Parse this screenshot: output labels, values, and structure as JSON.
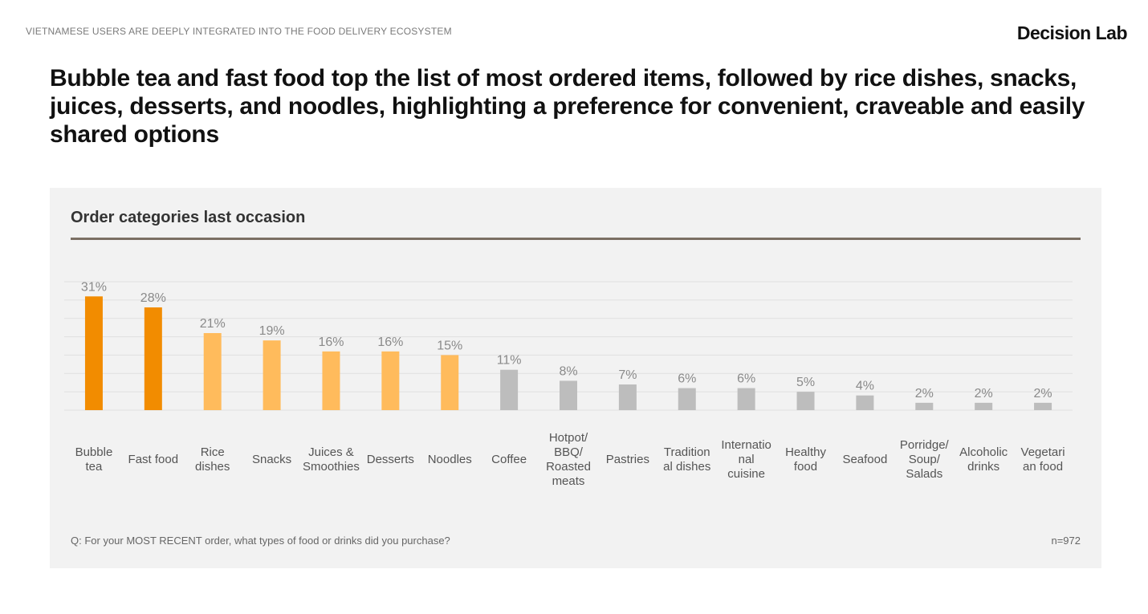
{
  "header": {
    "topline": "VIETNAMESE USERS ARE DEEPLY INTEGRATED INTO THE FOOD DELIVERY ECOSYSTEM",
    "brand": "Decision Lab",
    "headline": "Bubble tea and fast food top the list of most ordered items, followed by rice dishes, snacks, juices, desserts, and noodles, highlighting a preference for convenient, craveable and easily shared options"
  },
  "panel": {
    "title": "Order categories last occasion",
    "footnote": "Q: For your MOST RECENT order, what types of food or drinks did you purchase?",
    "sample": "n=972"
  },
  "chart_data": {
    "type": "bar",
    "title": "Order categories last occasion",
    "xlabel": "",
    "ylabel": "",
    "ylim": [
      0,
      35
    ],
    "grid": true,
    "categories": [
      [
        "Bubble",
        "tea"
      ],
      [
        "Fast food"
      ],
      [
        "Rice",
        "dishes"
      ],
      [
        "Snacks"
      ],
      [
        "Juices &",
        "Smoothies"
      ],
      [
        "Desserts"
      ],
      [
        "Noodles"
      ],
      [
        "Coffee"
      ],
      [
        "Hotpot/",
        "BBQ/",
        "Roasted",
        "meats"
      ],
      [
        "Pastries"
      ],
      [
        "Tradition",
        "al dishes"
      ],
      [
        "Internatio",
        "nal",
        "cuisine"
      ],
      [
        "Healthy",
        "food"
      ],
      [
        "Seafood"
      ],
      [
        "Porridge/",
        "Soup/",
        "Salads"
      ],
      [
        "Alcoholic",
        "drinks"
      ],
      [
        "Vegetari",
        "an food"
      ]
    ],
    "values": [
      31,
      28,
      21,
      19,
      16,
      16,
      15,
      11,
      8,
      7,
      6,
      6,
      5,
      4,
      2,
      2,
      2
    ],
    "value_labels": [
      "31%",
      "28%",
      "21%",
      "19%",
      "16%",
      "16%",
      "15%",
      "11%",
      "8%",
      "7%",
      "6%",
      "6%",
      "5%",
      "4%",
      "2%",
      "2%",
      "2%"
    ],
    "colors": {
      "top": "#f28c00",
      "mid": "#ffbb5c",
      "rest": "#bdbdbd",
      "grid": "#e0e0e0",
      "label": "#8a8a8a",
      "category": "#555555"
    },
    "color_groups": [
      "top",
      "top",
      "mid",
      "mid",
      "mid",
      "mid",
      "mid",
      "rest",
      "rest",
      "rest",
      "rest",
      "rest",
      "rest",
      "rest",
      "rest",
      "rest",
      "rest"
    ]
  }
}
